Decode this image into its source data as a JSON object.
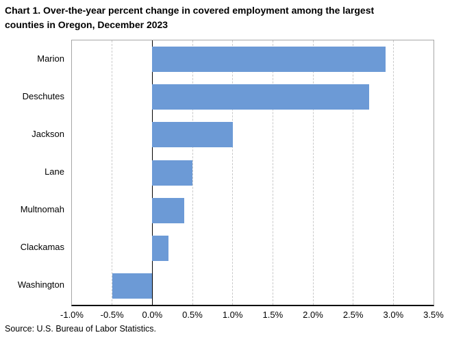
{
  "title": {
    "line1": "Chart 1. Over-the-year percent change in covered employment among the largest",
    "line2": "counties in Oregon, December 2023"
  },
  "source_note": "Source: U.S. Bureau of Labor Statistics.",
  "chart_data": {
    "type": "bar",
    "orientation": "horizontal",
    "title": "Chart 1. Over-the-year percent change in covered employment among the largest counties in Oregon, December 2023",
    "categories": [
      "Marion",
      "Deschutes",
      "Jackson",
      "Lane",
      "Multnomah",
      "Clackamas",
      "Washington"
    ],
    "values": [
      2.9,
      2.7,
      1.0,
      0.5,
      0.4,
      0.2,
      -0.5
    ],
    "value_unit": "percent",
    "xlabel": "",
    "ylabel": "",
    "xlim": [
      -1.0,
      3.5
    ],
    "x_ticks": [
      -1.0,
      -0.5,
      0.0,
      0.5,
      1.0,
      1.5,
      2.0,
      2.5,
      3.0,
      3.5
    ],
    "x_tick_labels": [
      "-1.0%",
      "-0.5%",
      "0.0%",
      "0.5%",
      "1.0%",
      "1.5%",
      "2.0%",
      "2.5%",
      "3.0%",
      "3.5%"
    ],
    "grid": "vertical dashed gridlines at 0.5 steps",
    "legend": "none",
    "colors": {
      "bar": "#6c9ad6",
      "zero_axis": "#000000",
      "bottom_axis": "#000000",
      "plot_border": "#a6a6a6",
      "gridline": "#c9c9c9",
      "text": "#000000",
      "background": "#ffffff"
    }
  }
}
